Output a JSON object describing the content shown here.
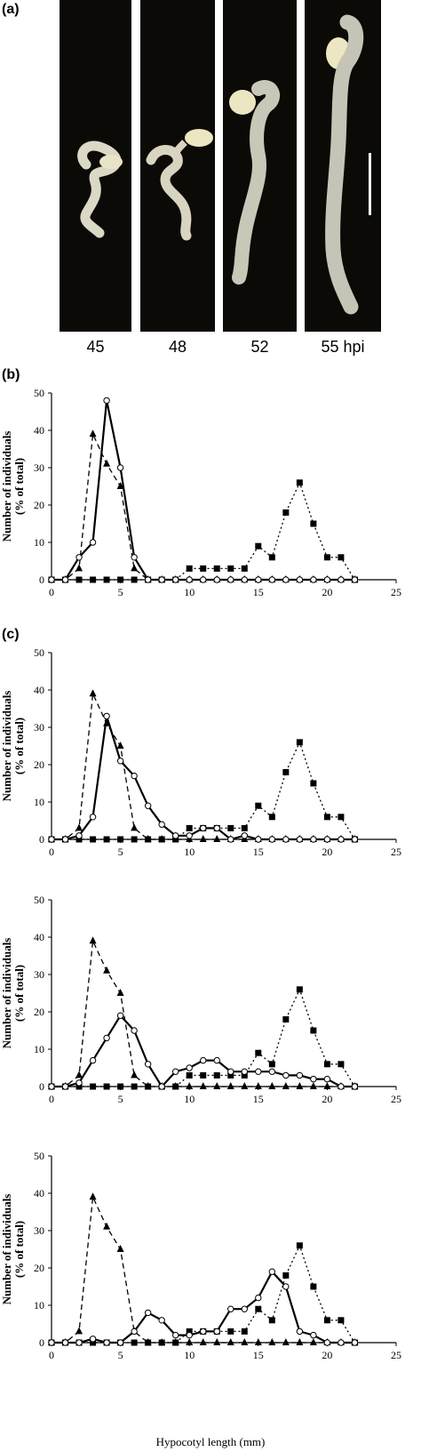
{
  "panel_a": {
    "label": "(a)",
    "photos": [
      {
        "label": "45"
      },
      {
        "label": "48"
      },
      {
        "label": "52"
      },
      {
        "label": "55 hpi"
      }
    ]
  },
  "chart_data": [
    {
      "panel_label": "(b)",
      "type": "line",
      "ylabel": "Number of individuals (% of total)",
      "xlabel": "",
      "xlim": [
        0,
        25
      ],
      "ylim": [
        0,
        50
      ],
      "xticks": [
        0,
        5,
        10,
        15,
        20,
        25
      ],
      "yticks": [
        0,
        10,
        20,
        30,
        40,
        50
      ],
      "series": [
        {
          "style": "dashed",
          "marker": "triangle",
          "x": [
            0,
            1,
            2,
            3,
            4,
            5,
            6,
            7,
            8,
            9,
            10,
            11,
            12,
            13,
            14,
            15,
            16,
            17,
            18,
            19,
            20,
            21,
            22
          ],
          "y": [
            0,
            0,
            3,
            39,
            31,
            25,
            3,
            0,
            0,
            0,
            0,
            0,
            0,
            0,
            0,
            0,
            0,
            0,
            0,
            0,
            0,
            0,
            0
          ]
        },
        {
          "style": "dotted",
          "marker": "square",
          "x": [
            0,
            1,
            2,
            3,
            4,
            5,
            6,
            7,
            8,
            9,
            10,
            11,
            12,
            13,
            14,
            15,
            16,
            17,
            18,
            19,
            20,
            21,
            22
          ],
          "y": [
            0,
            0,
            0,
            0,
            0,
            0,
            0,
            0,
            0,
            0,
            3,
            3,
            3,
            3,
            3,
            9,
            6,
            18,
            26,
            15,
            6,
            6,
            0
          ]
        },
        {
          "style": "solid",
          "marker": "circle",
          "x": [
            0,
            1,
            2,
            3,
            4,
            5,
            6,
            7,
            8,
            9,
            10,
            11,
            12,
            13,
            14,
            15,
            16,
            17,
            18,
            19,
            20,
            21,
            22
          ],
          "y": [
            0,
            0,
            6,
            10,
            48,
            30,
            6,
            0,
            0,
            0,
            0,
            0,
            0,
            0,
            0,
            0,
            0,
            0,
            0,
            0,
            0,
            0,
            0
          ]
        }
      ]
    },
    {
      "panel_label": "(c)",
      "type": "line",
      "ylabel": "Number of individuals (% of total)",
      "xlabel": "",
      "xlim": [
        0,
        25
      ],
      "ylim": [
        0,
        50
      ],
      "xticks": [
        0,
        5,
        10,
        15,
        20,
        25
      ],
      "yticks": [
        0,
        10,
        20,
        30,
        40,
        50
      ],
      "series": [
        {
          "style": "dashed",
          "marker": "triangle",
          "x": [
            0,
            1,
            2,
            3,
            4,
            5,
            6,
            7,
            8,
            9,
            10,
            11,
            12,
            13,
            14,
            15,
            16,
            17,
            18,
            19,
            20,
            21,
            22
          ],
          "y": [
            0,
            0,
            3,
            39,
            31,
            25,
            3,
            0,
            0,
            0,
            0,
            0,
            0,
            0,
            0,
            0,
            0,
            0,
            0,
            0,
            0,
            0,
            0
          ]
        },
        {
          "style": "dotted",
          "marker": "square",
          "x": [
            0,
            1,
            2,
            3,
            4,
            5,
            6,
            7,
            8,
            9,
            10,
            11,
            12,
            13,
            14,
            15,
            16,
            17,
            18,
            19,
            20,
            21,
            22
          ],
          "y": [
            0,
            0,
            0,
            0,
            0,
            0,
            0,
            0,
            0,
            0,
            3,
            3,
            3,
            3,
            3,
            9,
            6,
            18,
            26,
            15,
            6,
            6,
            0
          ]
        },
        {
          "style": "solid",
          "marker": "circle",
          "x": [
            0,
            1,
            2,
            3,
            4,
            5,
            6,
            7,
            8,
            9,
            10,
            11,
            12,
            13,
            14,
            15,
            16,
            17,
            18,
            19,
            20,
            21,
            22
          ],
          "y": [
            0,
            0,
            1,
            6,
            33,
            21,
            17,
            9,
            4,
            1,
            1,
            3,
            3,
            0,
            1,
            0,
            0,
            0,
            0,
            0,
            0,
            0,
            0
          ]
        }
      ]
    },
    {
      "panel_label": "",
      "type": "line",
      "ylabel": "Number of individuals (% of total)",
      "xlabel": "",
      "xlim": [
        0,
        25
      ],
      "ylim": [
        0,
        50
      ],
      "xticks": [
        0,
        5,
        10,
        15,
        20,
        25
      ],
      "yticks": [
        0,
        10,
        20,
        30,
        40,
        50
      ],
      "series": [
        {
          "style": "dashed",
          "marker": "triangle",
          "x": [
            0,
            1,
            2,
            3,
            4,
            5,
            6,
            7,
            8,
            9,
            10,
            11,
            12,
            13,
            14,
            15,
            16,
            17,
            18,
            19,
            20,
            21,
            22
          ],
          "y": [
            0,
            0,
            3,
            39,
            31,
            25,
            3,
            0,
            0,
            0,
            0,
            0,
            0,
            0,
            0,
            0,
            0,
            0,
            0,
            0,
            0,
            0,
            0
          ]
        },
        {
          "style": "dotted",
          "marker": "square",
          "x": [
            0,
            1,
            2,
            3,
            4,
            5,
            6,
            7,
            8,
            9,
            10,
            11,
            12,
            13,
            14,
            15,
            16,
            17,
            18,
            19,
            20,
            21,
            22
          ],
          "y": [
            0,
            0,
            0,
            0,
            0,
            0,
            0,
            0,
            0,
            0,
            3,
            3,
            3,
            3,
            3,
            9,
            6,
            18,
            26,
            15,
            6,
            6,
            0
          ]
        },
        {
          "style": "solid",
          "marker": "circle",
          "x": [
            0,
            1,
            2,
            3,
            4,
            5,
            6,
            7,
            8,
            9,
            10,
            11,
            12,
            13,
            14,
            15,
            16,
            17,
            18,
            19,
            20,
            21,
            22
          ],
          "y": [
            0,
            0,
            1,
            7,
            13,
            19,
            15,
            6,
            0,
            4,
            5,
            7,
            7,
            4,
            4,
            4,
            4,
            3,
            3,
            2,
            2,
            0,
            0
          ]
        }
      ]
    },
    {
      "panel_label": "",
      "type": "line",
      "ylabel": "Number of individuals (% of total)",
      "xlabel": "Hypocotyl length (mm)",
      "xlim": [
        0,
        25
      ],
      "ylim": [
        0,
        50
      ],
      "xticks": [
        0,
        5,
        10,
        15,
        20,
        25
      ],
      "yticks": [
        0,
        10,
        20,
        30,
        40,
        50
      ],
      "series": [
        {
          "style": "dashed",
          "marker": "triangle",
          "x": [
            0,
            1,
            2,
            3,
            4,
            5,
            6,
            7,
            8,
            9,
            10,
            11,
            12,
            13,
            14,
            15,
            16,
            17,
            18,
            19,
            20,
            21,
            22
          ],
          "y": [
            0,
            0,
            3,
            39,
            31,
            25,
            3,
            0,
            0,
            0,
            0,
            0,
            0,
            0,
            0,
            0,
            0,
            0,
            0,
            0,
            0,
            0,
            0
          ]
        },
        {
          "style": "dotted",
          "marker": "square",
          "x": [
            0,
            1,
            2,
            3,
            4,
            5,
            6,
            7,
            8,
            9,
            10,
            11,
            12,
            13,
            14,
            15,
            16,
            17,
            18,
            19,
            20,
            21,
            22
          ],
          "y": [
            0,
            0,
            0,
            0,
            0,
            0,
            0,
            0,
            0,
            0,
            3,
            3,
            3,
            3,
            3,
            9,
            6,
            18,
            26,
            15,
            6,
            6,
            0
          ]
        },
        {
          "style": "solid",
          "marker": "circle",
          "x": [
            0,
            1,
            2,
            3,
            4,
            5,
            6,
            7,
            8,
            9,
            10,
            11,
            12,
            13,
            14,
            15,
            16,
            17,
            18,
            19,
            20,
            21,
            22
          ],
          "y": [
            0,
            0,
            0,
            1,
            0,
            0,
            3,
            8,
            6,
            2,
            2,
            3,
            3,
            9,
            9,
            12,
            19,
            15,
            3,
            2,
            0,
            0,
            0
          ]
        }
      ]
    }
  ]
}
